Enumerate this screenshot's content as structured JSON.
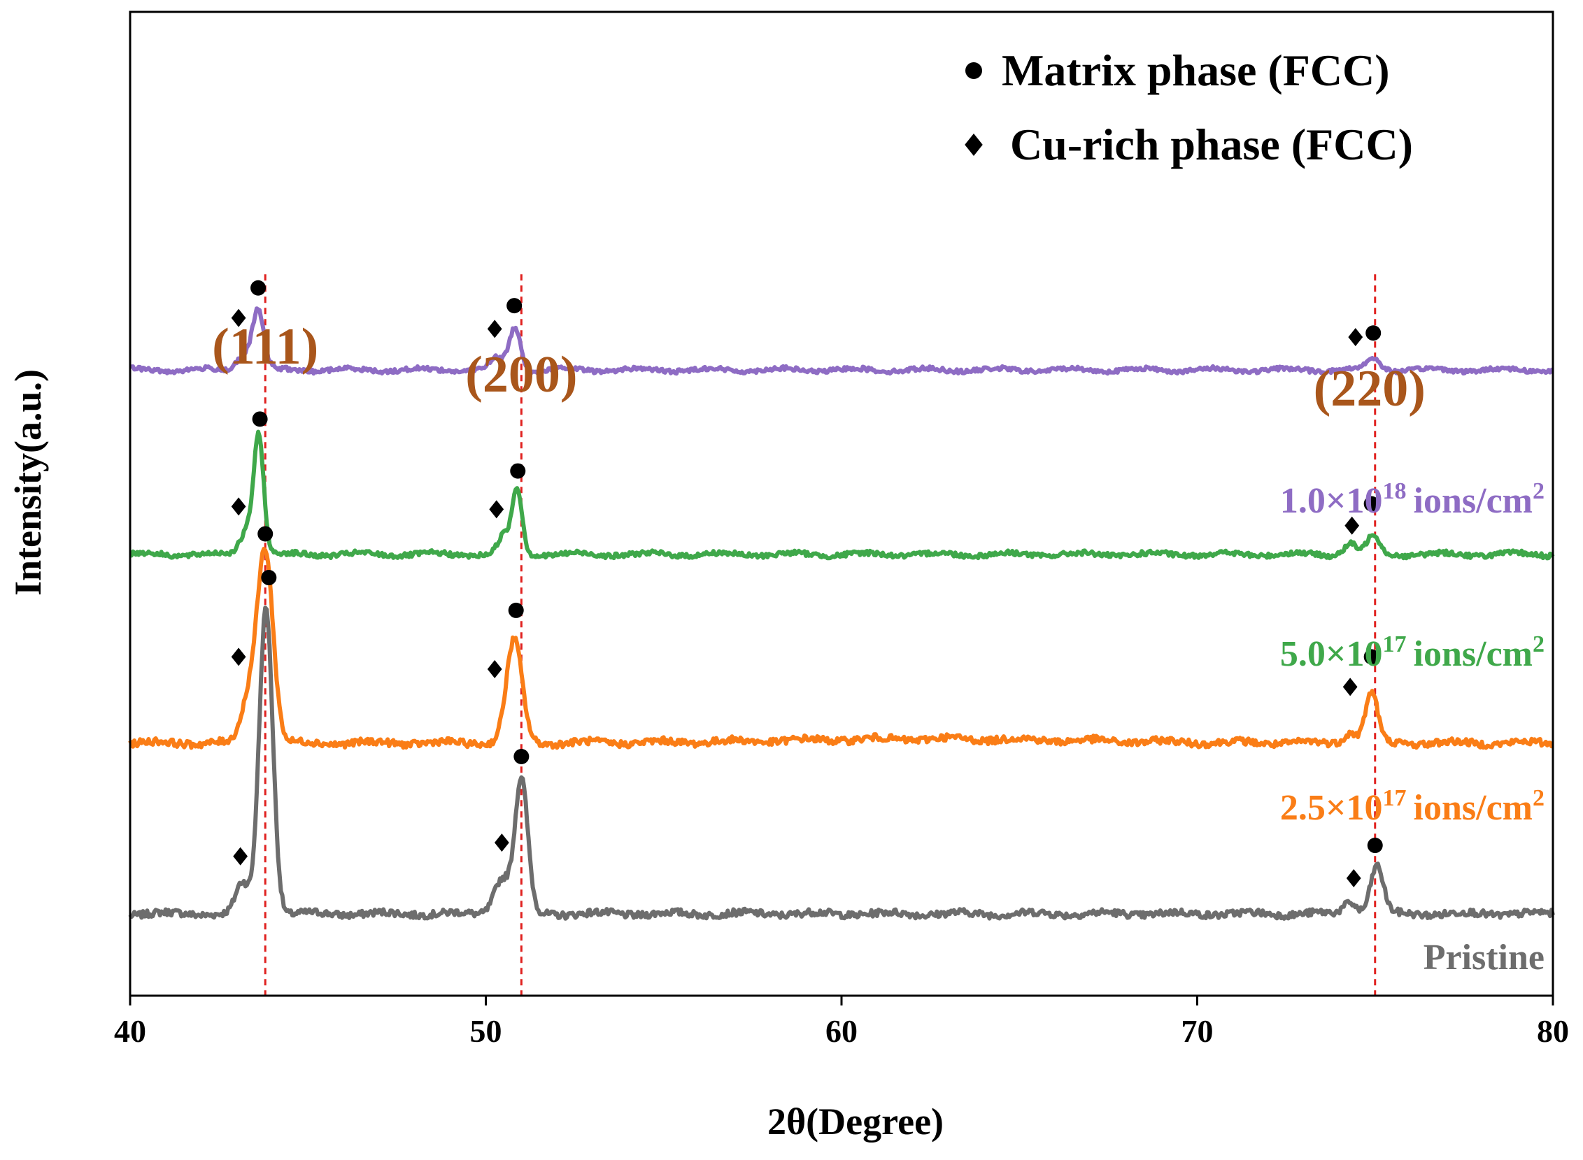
{
  "chart_data": {
    "type": "line",
    "title": "",
    "xlabel": "2θ(Degree)",
    "ylabel": "Intensity(a.u.)",
    "xlim": [
      40,
      80
    ],
    "xticks": [
      "40",
      "50",
      "60",
      "70",
      "80"
    ],
    "grid": false,
    "legend": {
      "position": "top-right",
      "entries": [
        {
          "marker": "circle",
          "symbol": "●",
          "label": "Matrix phase (FCC)"
        },
        {
          "marker": "diamond",
          "symbol": "◆",
          "label": "Cu-rich phase (FCC)"
        }
      ]
    },
    "peak_labels": [
      {
        "label": "(111)",
        "two_theta": 43.8
      },
      {
        "label": "(200)",
        "two_theta": 51.0
      },
      {
        "label": "(220)",
        "two_theta": 75.0
      }
    ],
    "series": [
      {
        "name": "Pristine",
        "label_main": "Pristine",
        "label_sup": "",
        "label_tail": "",
        "color": "#6d6d6d",
        "baseline": 0.0,
        "noise": 0.5,
        "peaks": [
          {
            "center": 43.15,
            "height": 2.2,
            "width": 0.18
          },
          {
            "center": 43.82,
            "height": 22.5,
            "width": 0.19
          },
          {
            "center": 50.45,
            "height": 2.6,
            "width": 0.22
          },
          {
            "center": 51.0,
            "height": 9.8,
            "width": 0.18
          },
          {
            "center": 74.3,
            "height": 0.9,
            "width": 0.18
          },
          {
            "center": 75.05,
            "height": 3.5,
            "width": 0.18
          }
        ],
        "markers": [
          {
            "type": "diamond",
            "x": 43.1,
            "y": 4.2
          },
          {
            "type": "circle",
            "x": 43.9,
            "y": 24.6
          },
          {
            "type": "diamond",
            "x": 50.45,
            "y": 5.2
          },
          {
            "type": "circle",
            "x": 51.0,
            "y": 11.5
          },
          {
            "type": "diamond",
            "x": 74.4,
            "y": 2.6
          },
          {
            "type": "circle",
            "x": 75.0,
            "y": 5.0
          }
        ]
      },
      {
        "name": "2.5×10^17 ions/cm^2",
        "label_main": "2.5×10",
        "label_sup": "17",
        "label_tail": "ions/cm",
        "label_tail_sup": "2",
        "color": "#fa7d16",
        "baseline": 12.5,
        "noise": 0.5,
        "peaks": [
          {
            "center": 43.35,
            "height": 3.2,
            "width": 0.22
          },
          {
            "center": 43.8,
            "height": 14.0,
            "width": 0.22
          },
          {
            "center": 50.8,
            "height": 7.5,
            "width": 0.22
          },
          {
            "center": 74.3,
            "height": 0.8,
            "width": 0.18
          },
          {
            "center": 74.9,
            "height": 3.7,
            "width": 0.17
          },
          {
            "center": 62.5,
            "height": 0.3,
            "width": 4.0
          }
        ],
        "markers": [
          {
            "type": "diamond",
            "x": 43.05,
            "y": 18.8
          },
          {
            "type": "circle",
            "x": 43.8,
            "y": 27.8
          },
          {
            "type": "diamond",
            "x": 50.25,
            "y": 17.9
          },
          {
            "type": "circle",
            "x": 50.85,
            "y": 22.2
          },
          {
            "type": "diamond",
            "x": 74.3,
            "y": 16.6
          },
          {
            "type": "circle",
            "x": 74.9,
            "y": 18.8
          }
        ]
      },
      {
        "name": "5.0×10^17 ions/cm^2",
        "label_main": "5.0×10",
        "label_sup": "17",
        "label_tail": "ions/cm",
        "label_tail_sup": "2",
        "color": "#3fa84a",
        "baseline": 26.3,
        "noise": 0.35,
        "peaks": [
          {
            "center": 43.3,
            "height": 1.8,
            "width": 0.2
          },
          {
            "center": 43.62,
            "height": 8.4,
            "width": 0.14
          },
          {
            "center": 50.5,
            "height": 1.3,
            "width": 0.16
          },
          {
            "center": 50.88,
            "height": 4.8,
            "width": 0.14
          },
          {
            "center": 74.3,
            "height": 0.8,
            "width": 0.17
          },
          {
            "center": 74.95,
            "height": 1.4,
            "width": 0.17
          }
        ],
        "markers": [
          {
            "type": "diamond",
            "x": 43.05,
            "y": 29.8
          },
          {
            "type": "circle",
            "x": 43.65,
            "y": 36.2
          },
          {
            "type": "diamond",
            "x": 50.3,
            "y": 29.6
          },
          {
            "type": "circle",
            "x": 50.9,
            "y": 32.4
          },
          {
            "type": "diamond",
            "x": 74.35,
            "y": 28.4
          },
          {
            "type": "circle",
            "x": 74.9,
            "y": 30.0
          }
        ]
      },
      {
        "name": "1.0×10^18 ions/cm^2",
        "label_main": "1.0×10",
        "label_sup": "18",
        "label_tail": "ions/cm",
        "label_tail_sup": "2",
        "color": "#8e6cc4",
        "baseline": 39.8,
        "noise": 0.3,
        "peaks": [
          {
            "center": 43.2,
            "height": 1.1,
            "width": 0.2
          },
          {
            "center": 43.6,
            "height": 4.3,
            "width": 0.16
          },
          {
            "center": 50.3,
            "height": 0.8,
            "width": 0.2
          },
          {
            "center": 50.82,
            "height": 3.1,
            "width": 0.16
          },
          {
            "center": 74.95,
            "height": 0.8,
            "width": 0.2
          }
        ],
        "markers": [
          {
            "type": "diamond",
            "x": 43.05,
            "y": 43.6
          },
          {
            "type": "circle",
            "x": 43.6,
            "y": 45.8
          },
          {
            "type": "diamond",
            "x": 50.25,
            "y": 42.8
          },
          {
            "type": "circle",
            "x": 50.8,
            "y": 44.5
          },
          {
            "type": "diamond",
            "x": 74.45,
            "y": 42.2
          },
          {
            "type": "circle",
            "x": 74.95,
            "y": 42.5
          }
        ]
      }
    ]
  }
}
